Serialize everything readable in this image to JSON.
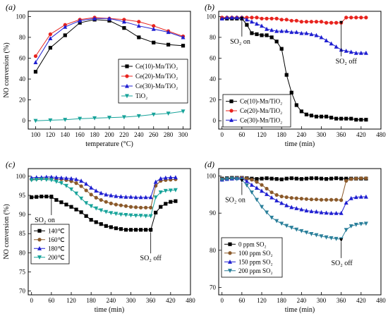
{
  "chart_data": [
    {
      "type": "line",
      "panel_label": "(a)",
      "xlabel": "temperature (°C)",
      "ylabel": "NO conversion (%)",
      "xlim": [
        90,
        310
      ],
      "ylim": [
        -8,
        105
      ],
      "xticks": [
        100,
        120,
        140,
        160,
        180,
        200,
        220,
        240,
        260,
        280,
        300
      ],
      "yticks": [
        0,
        20,
        40,
        60,
        80,
        100
      ],
      "legend_position": "center-right",
      "series": [
        {
          "name": "Ce(10)-Mn/TiO₂",
          "color": "#000000",
          "marker": "square",
          "x": [
            100,
            120,
            140,
            160,
            180,
            200,
            220,
            240,
            260,
            280,
            300
          ],
          "y": [
            47,
            70,
            82,
            94,
            97,
            96,
            89,
            80,
            75,
            73,
            72
          ]
        },
        {
          "name": "Ce(20)-Mn/TiO₂",
          "color": "#e8231e",
          "marker": "circle",
          "x": [
            100,
            120,
            140,
            160,
            180,
            200,
            220,
            240,
            260,
            280,
            300
          ],
          "y": [
            62,
            83,
            92,
            97,
            99,
            98,
            97,
            95,
            91,
            86,
            81
          ]
        },
        {
          "name": "Ce(30)-Mn/TiO₂",
          "color": "#1f1fd1",
          "marker": "triangle-up",
          "x": [
            100,
            120,
            140,
            160,
            180,
            200,
            220,
            240,
            260,
            280,
            300
          ],
          "y": [
            56,
            79,
            90,
            96,
            98,
            98,
            95,
            91,
            88,
            85,
            80
          ]
        },
        {
          "name": "TiO₂",
          "color": "#17a39a",
          "marker": "triangle-down",
          "x": [
            100,
            120,
            140,
            160,
            180,
            200,
            220,
            240,
            260,
            280,
            300
          ],
          "y": [
            0,
            0.5,
            1,
            2,
            2.5,
            3,
            3.5,
            4.5,
            6,
            7,
            9
          ]
        }
      ]
    },
    {
      "type": "line",
      "panel_label": "(b)",
      "xlabel": "time (min)",
      "ylabel": "",
      "xlim": [
        -10,
        480
      ],
      "ylim": [
        -8,
        105
      ],
      "xticks": [
        0,
        60,
        120,
        180,
        240,
        300,
        360,
        420,
        480
      ],
      "yticks": [
        0,
        20,
        40,
        60,
        80,
        100
      ],
      "legend_position": "bottom-left",
      "annotations": [
        {
          "text": "SO₂ on",
          "x": 60,
          "y": 99,
          "label_x": 55,
          "label_y": 74
        },
        {
          "text": "SO₂ off",
          "x": 360,
          "y": 95,
          "label_x": 375,
          "label_y": 55
        }
      ],
      "series": [
        {
          "name": "Ce(10)-Mn/TiO₂",
          "color": "#000000",
          "marker": "square",
          "x": [
            0,
            15,
            30,
            45,
            60,
            75,
            90,
            105,
            120,
            135,
            150,
            165,
            180,
            195,
            210,
            225,
            240,
            255,
            270,
            285,
            300,
            315,
            330,
            345,
            360,
            375,
            390,
            405,
            420,
            435
          ],
          "y": [
            98,
            98,
            98,
            98,
            98,
            92,
            84,
            83,
            82,
            82,
            80,
            76,
            69,
            44,
            27,
            15,
            9,
            6,
            5,
            4,
            4,
            4,
            3,
            2,
            2,
            2,
            2,
            1,
            1,
            1
          ]
        },
        {
          "name": "Ce(20)-Mn/TiO₂",
          "color": "#e8231e",
          "marker": "circle",
          "x": [
            0,
            15,
            30,
            45,
            60,
            75,
            90,
            105,
            120,
            135,
            150,
            165,
            180,
            195,
            210,
            225,
            240,
            255,
            270,
            285,
            300,
            315,
            330,
            345,
            360,
            375,
            390,
            405,
            420,
            435
          ],
          "y": [
            99,
            99,
            99,
            99,
            99,
            99,
            99,
            99,
            98,
            98,
            98,
            98,
            97,
            97,
            96,
            96,
            95,
            95,
            95,
            95,
            95,
            94,
            94,
            94,
            94,
            99,
            99,
            99,
            99,
            99
          ]
        },
        {
          "name": "Ce(30)-Mn/TiO₂",
          "color": "#1f1fd1",
          "marker": "triangle-up",
          "x": [
            0,
            15,
            30,
            45,
            60,
            75,
            90,
            105,
            120,
            135,
            150,
            165,
            180,
            195,
            210,
            225,
            240,
            255,
            270,
            285,
            300,
            315,
            330,
            345,
            360,
            375,
            390,
            405,
            420,
            435
          ],
          "y": [
            98,
            99,
            99,
            99,
            99,
            97,
            95,
            93,
            91,
            88,
            87,
            86,
            86,
            86,
            85,
            85,
            84,
            84,
            83,
            82,
            80,
            77,
            74,
            71,
            68,
            67,
            66,
            65,
            65,
            65
          ]
        }
      ]
    },
    {
      "type": "line",
      "panel_label": "(c)",
      "xlabel": "time (min)",
      "ylabel": "NO conversion (%)",
      "xlim": [
        -10,
        480
      ],
      "ylim": [
        69,
        102
      ],
      "xticks": [
        0,
        60,
        120,
        180,
        240,
        300,
        360,
        420,
        480
      ],
      "yticks": [
        70,
        75,
        80,
        85,
        90,
        95,
        100
      ],
      "legend_position": "bottom-left",
      "annotations": [
        {
          "text": "SO₂ on",
          "x": 60,
          "y": 95,
          "label_x": 40,
          "label_y": 88
        },
        {
          "text": "SO₂ off",
          "x": 360,
          "y": 86,
          "label_x": 360,
          "label_y": 78
        }
      ],
      "series": [
        {
          "name": "140℃",
          "color": "#000000",
          "marker": "square",
          "x": [
            0,
            15,
            30,
            45,
            60,
            75,
            90,
            105,
            120,
            135,
            150,
            165,
            180,
            195,
            210,
            225,
            240,
            255,
            270,
            285,
            300,
            315,
            330,
            345,
            360,
            375,
            390,
            405,
            420,
            435
          ],
          "y": [
            94.5,
            94.6,
            94.7,
            94.7,
            94.6,
            93.8,
            93.2,
            92.6,
            92,
            91.3,
            90.6,
            89.6,
            88.6,
            88,
            87.5,
            87,
            86.7,
            86.4,
            86.2,
            86,
            86,
            86,
            86,
            86,
            86,
            90.5,
            92,
            92.8,
            93.3,
            93.5
          ]
        },
        {
          "name": "160℃",
          "color": "#8b5a2b",
          "marker": "circle",
          "x": [
            0,
            15,
            30,
            45,
            60,
            75,
            90,
            105,
            120,
            135,
            150,
            165,
            180,
            195,
            210,
            225,
            240,
            255,
            270,
            285,
            300,
            315,
            330,
            345,
            360,
            375,
            390,
            405,
            420,
            435
          ],
          "y": [
            99.2,
            99.3,
            99.4,
            99.4,
            99.4,
            99.3,
            99.2,
            99,
            98.7,
            98.2,
            97.4,
            96.3,
            95.2,
            94.4,
            93.8,
            93.3,
            92.9,
            92.6,
            92.4,
            92.2,
            92,
            91.9,
            91.8,
            91.8,
            91.8,
            97.5,
            98.8,
            99,
            99.1,
            99.2
          ]
        },
        {
          "name": "180℃",
          "color": "#1f1fd1",
          "marker": "triangle-up",
          "x": [
            0,
            15,
            30,
            45,
            60,
            75,
            90,
            105,
            120,
            135,
            150,
            165,
            180,
            195,
            210,
            225,
            240,
            255,
            270,
            285,
            300,
            315,
            330,
            345,
            360,
            375,
            390,
            405,
            420,
            435
          ],
          "y": [
            99.6,
            99.7,
            99.7,
            99.8,
            99.8,
            99.7,
            99.6,
            99.5,
            99.4,
            99.2,
            98.8,
            98,
            97,
            96.2,
            95.6,
            95.2,
            95,
            94.8,
            94.7,
            94.6,
            94.6,
            94.5,
            94.5,
            94.5,
            94.5,
            98.5,
            99.4,
            99.6,
            99.7,
            99.7
          ]
        },
        {
          "name": "200℃",
          "color": "#17a39a",
          "marker": "triangle-down",
          "x": [
            0,
            15,
            30,
            45,
            60,
            75,
            90,
            105,
            120,
            135,
            150,
            165,
            180,
            195,
            210,
            225,
            240,
            255,
            270,
            285,
            300,
            315,
            330,
            345,
            360,
            375,
            390,
            405,
            420,
            435
          ],
          "y": [
            99,
            99.1,
            99.2,
            99.1,
            99,
            98.6,
            98.2,
            97.5,
            96.6,
            95.5,
            94.2,
            93,
            92.2,
            91.6,
            91.1,
            90.7,
            90.4,
            90.2,
            90,
            89.9,
            89.8,
            89.7,
            89.7,
            89.6,
            89.6,
            94.5,
            95.8,
            96.2,
            96.3,
            96.4
          ]
        }
      ]
    },
    {
      "type": "line",
      "panel_label": "(d)",
      "xlabel": "time (min)",
      "ylabel": "",
      "xlim": [
        -10,
        480
      ],
      "ylim": [
        68,
        102
      ],
      "xticks": [
        0,
        60,
        120,
        180,
        240,
        300,
        360,
        420,
        480
      ],
      "yticks": [
        70,
        80,
        90,
        100
      ],
      "legend_position": "bottom-left",
      "annotations": [
        {
          "text": "SO₂ on",
          "x": 60,
          "y": 99,
          "label_x": 40,
          "label_y": 93
        },
        {
          "text": "SO₂ off",
          "x": 360,
          "y": 83,
          "label_x": 362,
          "label_y": 76
        }
      ],
      "series": [
        {
          "name": "0 ppm SO₂",
          "color": "#000000",
          "marker": "square",
          "x": [
            0,
            15,
            30,
            45,
            60,
            75,
            90,
            105,
            120,
            135,
            150,
            165,
            180,
            195,
            210,
            225,
            240,
            255,
            270,
            285,
            300,
            315,
            330,
            345,
            360,
            375,
            390,
            405,
            420,
            435
          ],
          "y": [
            99.3,
            99.4,
            99.5,
            99.5,
            99.5,
            99.4,
            99.3,
            99.2,
            99.3,
            99.4,
            99.3,
            99.2,
            99.1,
            99.3,
            99.4,
            99.3,
            99.2,
            99.3,
            99.4,
            99.4,
            99.3,
            99.2,
            99.3,
            99.4,
            99.3,
            99.3,
            99.3,
            99.3,
            99.3,
            99.3
          ]
        },
        {
          "name": "100 ppm SO₂",
          "color": "#8b5a2b",
          "marker": "circle",
          "x": [
            0,
            15,
            30,
            45,
            60,
            75,
            90,
            105,
            120,
            135,
            150,
            165,
            180,
            195,
            210,
            225,
            240,
            255,
            270,
            285,
            300,
            315,
            330,
            345,
            360,
            375,
            390,
            405,
            420,
            435
          ],
          "y": [
            99.2,
            99.3,
            99.4,
            99.5,
            99.5,
            99.3,
            99,
            98.4,
            97.6,
            96.6,
            95.6,
            94.9,
            94.5,
            94.3,
            94.1,
            94,
            93.9,
            93.8,
            93.7,
            93.7,
            93.6,
            93.6,
            93.6,
            93.6,
            93.5,
            98.7,
            99.2,
            99.3,
            99.4,
            99.4
          ]
        },
        {
          "name": "150 ppm SO₂",
          "color": "#1f1fd1",
          "marker": "triangle-up",
          "x": [
            0,
            15,
            30,
            45,
            60,
            75,
            90,
            105,
            120,
            135,
            150,
            165,
            180,
            195,
            210,
            225,
            240,
            255,
            270,
            285,
            300,
            315,
            330,
            345,
            360,
            375,
            390,
            405,
            420,
            435
          ],
          "y": [
            99,
            99.2,
            99.3,
            99.4,
            99.4,
            98.6,
            97.6,
            96.8,
            96,
            95.1,
            94.2,
            93.4,
            92.7,
            92.1,
            91.6,
            91.3,
            91,
            90.7,
            90.5,
            90.4,
            90.2,
            90.1,
            90,
            90,
            90,
            92.8,
            94,
            94.3,
            94.4,
            94.4
          ]
        },
        {
          "name": "200 ppm SO₂",
          "color": "#2a7f9a",
          "marker": "triangle-down",
          "x": [
            0,
            15,
            30,
            45,
            60,
            75,
            90,
            105,
            120,
            135,
            150,
            165,
            180,
            195,
            210,
            225,
            240,
            255,
            270,
            285,
            300,
            315,
            330,
            345,
            360,
            375,
            390,
            405,
            420,
            435
          ],
          "y": [
            99,
            99.2,
            99.3,
            99.2,
            99,
            97.5,
            95.6,
            93.6,
            91.7,
            90.2,
            88.8,
            87.9,
            87.2,
            86.6,
            86.1,
            85.6,
            85.2,
            84.8,
            84.4,
            84.1,
            83.8,
            83.5,
            83.3,
            83.1,
            83,
            85.5,
            86.5,
            86.9,
            87.1,
            87.2
          ]
        }
      ]
    }
  ]
}
